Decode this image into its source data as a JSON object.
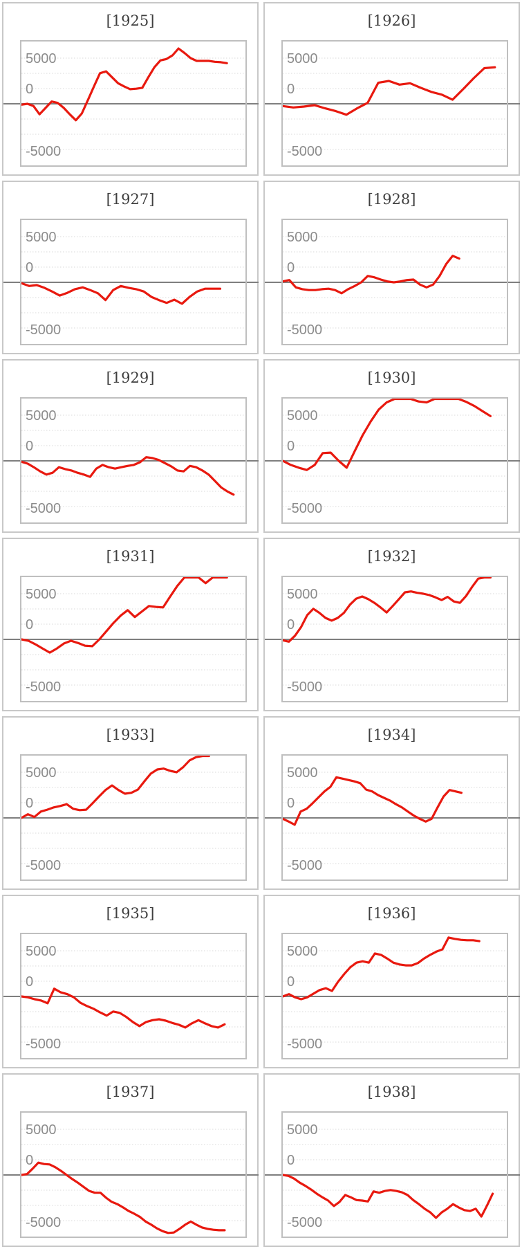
{
  "page": {
    "background": "#ffffff",
    "grid_columns": 2,
    "grid_rows": 7
  },
  "styles": {
    "line_color": "#e8190f",
    "grid_color": "#d9d9d9",
    "zero_line_color": "#7f7f7f",
    "plot_border_color": "#bfbfbf",
    "cell_border_color": "#c8c8c8",
    "label_color": "#8c8c8c",
    "title_color": "#3f3f3f"
  },
  "axis": {
    "tick_labels": [
      "5000",
      "0",
      "-5000"
    ],
    "tick_values": [
      5000,
      0,
      -5000
    ],
    "minor_grid_step": 1667,
    "y_visible_min": -6800,
    "y_visible_max": 6800,
    "zero_line": true,
    "grid": "dotted"
  },
  "chart_data": [
    {
      "type": "line",
      "title": "[1925]",
      "year": 1925,
      "legend": null,
      "xlabel": "",
      "ylabel": "",
      "yticks": [
        5000,
        0,
        -5000
      ],
      "end_frac": 0.92,
      "values": [
        -100,
        0,
        -250,
        -1150,
        -450,
        250,
        100,
        -450,
        -1150,
        -1800,
        -1050,
        400,
        1900,
        3350,
        3550,
        2900,
        2250,
        1900,
        1600,
        1650,
        1750,
        2900,
        4000,
        4750,
        4900,
        5300,
        6050,
        5550,
        5000,
        4700,
        4700,
        4700,
        4600,
        4550,
        4450
      ]
    },
    {
      "type": "line",
      "title": "[1926]",
      "year": 1926,
      "legend": null,
      "xlabel": "",
      "ylabel": "",
      "yticks": [
        5000,
        0,
        -5000
      ],
      "end_frac": 0.95,
      "values": [
        -250,
        -400,
        -300,
        -150,
        -500,
        -800,
        -1200,
        -500,
        100,
        2300,
        2500,
        2100,
        2250,
        1750,
        1300,
        1000,
        450,
        1600,
        2800,
        3900,
        4000
      ]
    },
    {
      "type": "line",
      "title": "[1927]",
      "year": 1927,
      "legend": null,
      "xlabel": "",
      "ylabel": "",
      "yticks": [
        5000,
        0,
        -5000
      ],
      "end_frac": 0.89,
      "values": [
        -100,
        -400,
        -300,
        -600,
        -1000,
        -1450,
        -1150,
        -750,
        -550,
        -850,
        -1200,
        -1950,
        -850,
        -400,
        -600,
        -750,
        -1000,
        -1600,
        -1950,
        -2250,
        -1900,
        -2350,
        -1600,
        -1000,
        -700,
        -700,
        -700
      ]
    },
    {
      "type": "line",
      "title": "[1928]",
      "year": 1928,
      "legend": null,
      "xlabel": "",
      "ylabel": "",
      "yticks": [
        5000,
        0,
        -5000
      ],
      "end_frac": 0.79,
      "values": [
        100,
        250,
        -550,
        -750,
        -850,
        -850,
        -750,
        -700,
        -850,
        -1200,
        -750,
        -400,
        0,
        700,
        550,
        300,
        100,
        0,
        100,
        250,
        300,
        -250,
        -550,
        -250,
        700,
        2000,
        2900,
        2600
      ]
    },
    {
      "type": "line",
      "title": "[1929]",
      "year": 1929,
      "legend": null,
      "xlabel": "",
      "ylabel": "",
      "yticks": [
        5000,
        0,
        -5000
      ],
      "end_frac": 0.95,
      "values": [
        -100,
        -300,
        -700,
        -1150,
        -1500,
        -1300,
        -700,
        -900,
        -1050,
        -1300,
        -1500,
        -1750,
        -850,
        -450,
        -700,
        -850,
        -700,
        -550,
        -450,
        -150,
        400,
        300,
        100,
        -250,
        -600,
        -1050,
        -1150,
        -550,
        -700,
        -1050,
        -1500,
        -2200,
        -2900,
        -3350,
        -3700
      ]
    },
    {
      "type": "line",
      "title": "[1930]",
      "year": 1930,
      "legend": null,
      "xlabel": "",
      "ylabel": "",
      "yticks": [
        5000,
        0,
        -5000
      ],
      "end_frac": 0.93,
      "values": [
        0,
        -450,
        -750,
        -1000,
        -450,
        850,
        900,
        0,
        -750,
        1050,
        2800,
        4300,
        5600,
        6400,
        6800,
        6800,
        6800,
        6500,
        6400,
        6800,
        6800,
        6800,
        6800,
        6450,
        6000,
        5450,
        4900
      ]
    },
    {
      "type": "line",
      "title": "[1931]",
      "year": 1931,
      "legend": null,
      "xlabel": "",
      "ylabel": "",
      "yticks": [
        5000,
        0,
        -5000
      ],
      "end_frac": 0.92,
      "values": [
        0,
        -150,
        -550,
        -1000,
        -1450,
        -1000,
        -450,
        -150,
        -400,
        -700,
        -750,
        0,
        900,
        1800,
        2600,
        3200,
        2450,
        3050,
        3650,
        3550,
        3500,
        4700,
        5850,
        6800,
        6800,
        6800,
        6150,
        6800,
        6800,
        6800
      ]
    },
    {
      "type": "line",
      "title": "[1932]",
      "year": 1932,
      "legend": null,
      "xlabel": "",
      "ylabel": "",
      "yticks": [
        5000,
        0,
        -5000
      ],
      "end_frac": 0.93,
      "values": [
        -100,
        -250,
        400,
        1350,
        2650,
        3350,
        2900,
        2350,
        2050,
        2350,
        2900,
        3800,
        4450,
        4700,
        4400,
        4000,
        3500,
        2950,
        3650,
        4400,
        5150,
        5250,
        5100,
        5000,
        4850,
        4600,
        4300,
        4650,
        4150,
        4000,
        4750,
        5750,
        6650,
        6800,
        6800
      ]
    },
    {
      "type": "line",
      "title": "[1933]",
      "year": 1933,
      "legend": null,
      "xlabel": "",
      "ylabel": "",
      "yticks": [
        5000,
        0,
        -5000
      ],
      "end_frac": 0.84,
      "values": [
        0,
        400,
        100,
        700,
        900,
        1150,
        1300,
        1500,
        1000,
        850,
        900,
        1600,
        2350,
        3050,
        3550,
        3050,
        2650,
        2750,
        3100,
        4000,
        4850,
        5300,
        5400,
        5150,
        5000,
        5550,
        6300,
        6650,
        6800,
        6800
      ]
    },
    {
      "type": "line",
      "title": "[1934]",
      "year": 1934,
      "legend": null,
      "xlabel": "",
      "ylabel": "",
      "yticks": [
        5000,
        0,
        -5000
      ],
      "end_frac": 0.8,
      "values": [
        -100,
        -400,
        -750,
        700,
        1000,
        1600,
        2250,
        2900,
        3400,
        4450,
        4300,
        4150,
        4000,
        3800,
        3100,
        2900,
        2500,
        2200,
        1900,
        1500,
        1150,
        700,
        250,
        -100,
        -400,
        -100,
        1150,
        2350,
        3050,
        2900,
        2750
      ]
    },
    {
      "type": "line",
      "title": "[1935]",
      "year": 1935,
      "legend": null,
      "xlabel": "",
      "ylabel": "",
      "yticks": [
        5000,
        0,
        -5000
      ],
      "end_frac": 0.91,
      "values": [
        0,
        -100,
        -300,
        -450,
        -750,
        850,
        450,
        250,
        -100,
        -700,
        -1050,
        -1350,
        -1750,
        -2100,
        -1650,
        -1800,
        -2250,
        -2800,
        -3250,
        -2800,
        -2600,
        -2500,
        -2650,
        -2900,
        -3100,
        -3400,
        -2950,
        -2600,
        -2950,
        -3250,
        -3400,
        -3050
      ]
    },
    {
      "type": "line",
      "title": "[1936]",
      "year": 1936,
      "legend": null,
      "xlabel": "",
      "ylabel": "",
      "yticks": [
        5000,
        0,
        -5000
      ],
      "end_frac": 0.88,
      "values": [
        0,
        250,
        -100,
        -300,
        -100,
        300,
        700,
        900,
        600,
        1600,
        2450,
        3200,
        3700,
        3850,
        3700,
        4700,
        4550,
        4150,
        3700,
        3500,
        3400,
        3400,
        3650,
        4150,
        4550,
        4900,
        5150,
        6450,
        6300,
        6200,
        6150,
        6150,
        6050
      ]
    },
    {
      "type": "line",
      "title": "[1937]",
      "year": 1937,
      "legend": null,
      "xlabel": "",
      "ylabel": "",
      "yticks": [
        5000,
        0,
        -5000
      ],
      "end_frac": 0.91,
      "values": [
        0,
        100,
        700,
        1350,
        1200,
        1150,
        850,
        450,
        0,
        -450,
        -850,
        -1300,
        -1750,
        -1950,
        -1950,
        -2500,
        -2950,
        -3200,
        -3550,
        -3950,
        -4250,
        -4600,
        -5100,
        -5450,
        -5850,
        -6150,
        -6350,
        -6300,
        -5900,
        -5450,
        -5100,
        -5450,
        -5750,
        -5900,
        -6000,
        -6050,
        -6050
      ]
    },
    {
      "type": "line",
      "title": "[1938]",
      "year": 1938,
      "legend": null,
      "xlabel": "",
      "ylabel": "",
      "yticks": [
        5000,
        0,
        -5000
      ],
      "end_frac": 0.94,
      "values": [
        0,
        -100,
        -400,
        -850,
        -1200,
        -1600,
        -2050,
        -2450,
        -2800,
        -3400,
        -2950,
        -2200,
        -2450,
        -2750,
        -2800,
        -2900,
        -1800,
        -1950,
        -1750,
        -1650,
        -1750,
        -1900,
        -2200,
        -2750,
        -3200,
        -3700,
        -4100,
        -4700,
        -4100,
        -3700,
        -3200,
        -3550,
        -3850,
        -3950,
        -3700,
        -4550,
        -3350,
        -2050
      ]
    }
  ]
}
